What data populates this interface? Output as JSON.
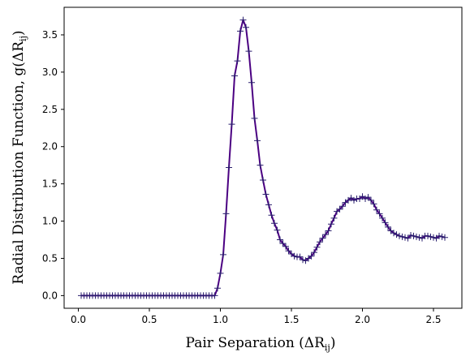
{
  "chart_data": {
    "type": "line",
    "title": "",
    "xlabel": "Pair Separation (ΔR",
    "xlabel_sub": "ij",
    "xlabel_close": ")",
    "ylabel": "Radial Distribution Function, g(ΔR",
    "ylabel_sub": "ij",
    "ylabel_close": ")",
    "xlim": [
      -0.1,
      2.7
    ],
    "ylim": [
      -0.17,
      3.87
    ],
    "xticks": [
      0.0,
      0.5,
      1.0,
      1.5,
      2.0,
      2.5
    ],
    "xtick_labels": [
      "0.0",
      "0.5",
      "1.0",
      "1.5",
      "2.0",
      "2.5"
    ],
    "yticks": [
      0.0,
      0.5,
      1.0,
      1.5,
      2.0,
      2.5,
      3.0,
      3.5
    ],
    "ytick_labels": [
      "0.0",
      "0.5",
      "1.0",
      "1.5",
      "2.0",
      "2.5",
      "3.0",
      "3.5"
    ],
    "grid": false,
    "legend": "none",
    "marker": "plus",
    "line_color": "#4b0082",
    "marker_color": "#2a1f6e",
    "series": [
      {
        "x": [
          0.02,
          0.04,
          0.06,
          0.08,
          0.1,
          0.12,
          0.14,
          0.16,
          0.18,
          0.2,
          0.22,
          0.24,
          0.26,
          0.28,
          0.3,
          0.32,
          0.34,
          0.36,
          0.38,
          0.4,
          0.42,
          0.44,
          0.46,
          0.48,
          0.5,
          0.52,
          0.54,
          0.56,
          0.58,
          0.6,
          0.62,
          0.64,
          0.66,
          0.68,
          0.7,
          0.72,
          0.74,
          0.76,
          0.78,
          0.8,
          0.82,
          0.84,
          0.86,
          0.88,
          0.9,
          0.92,
          0.94,
          0.96,
          0.98,
          1.0,
          1.02,
          1.04,
          1.06,
          1.08,
          1.1,
          1.12,
          1.14,
          1.16,
          1.18,
          1.2,
          1.22,
          1.24,
          1.26,
          1.28,
          1.3,
          1.32,
          1.34,
          1.36,
          1.38,
          1.4,
          1.42,
          1.44,
          1.46,
          1.48,
          1.5,
          1.52,
          1.54,
          1.56,
          1.58,
          1.6,
          1.62,
          1.64,
          1.66,
          1.68,
          1.7,
          1.72,
          1.74,
          1.76,
          1.78,
          1.8,
          1.82,
          1.84,
          1.86,
          1.88,
          1.9,
          1.92,
          1.94,
          1.96,
          1.98,
          2.0,
          2.02,
          2.04,
          2.06,
          2.08,
          2.1,
          2.12,
          2.14,
          2.16,
          2.18,
          2.2,
          2.22,
          2.24,
          2.26,
          2.28,
          2.3,
          2.32,
          2.34,
          2.36,
          2.38,
          2.4,
          2.42,
          2.44,
          2.46,
          2.48,
          2.5,
          2.52,
          2.54,
          2.56,
          2.58
        ],
        "y": [
          0.0,
          0.0,
          0.0,
          0.0,
          0.0,
          0.0,
          0.0,
          0.0,
          0.0,
          0.0,
          0.0,
          0.0,
          0.0,
          0.0,
          0.0,
          0.0,
          0.0,
          0.0,
          0.0,
          0.0,
          0.0,
          0.0,
          0.0,
          0.0,
          0.0,
          0.0,
          0.0,
          0.0,
          0.0,
          0.0,
          0.0,
          0.0,
          0.0,
          0.0,
          0.0,
          0.0,
          0.0,
          0.0,
          0.0,
          0.0,
          0.0,
          0.0,
          0.0,
          0.0,
          0.0,
          0.0,
          0.0,
          0.0,
          0.1,
          0.3,
          0.55,
          1.1,
          1.72,
          2.3,
          2.95,
          3.15,
          3.55,
          3.7,
          3.6,
          3.28,
          2.86,
          2.38,
          2.08,
          1.75,
          1.55,
          1.36,
          1.22,
          1.08,
          0.97,
          0.88,
          0.75,
          0.7,
          0.66,
          0.6,
          0.56,
          0.53,
          0.52,
          0.52,
          0.48,
          0.47,
          0.5,
          0.53,
          0.58,
          0.65,
          0.72,
          0.77,
          0.82,
          0.87,
          0.96,
          1.04,
          1.13,
          1.16,
          1.2,
          1.25,
          1.28,
          1.31,
          1.28,
          1.3,
          1.3,
          1.33,
          1.3,
          1.32,
          1.28,
          1.23,
          1.15,
          1.1,
          1.04,
          0.98,
          0.92,
          0.87,
          0.84,
          0.82,
          0.8,
          0.79,
          0.78,
          0.77,
          0.81,
          0.8,
          0.79,
          0.78,
          0.77,
          0.8,
          0.8,
          0.79,
          0.78,
          0.77,
          0.8,
          0.79,
          0.78
        ]
      }
    ]
  }
}
